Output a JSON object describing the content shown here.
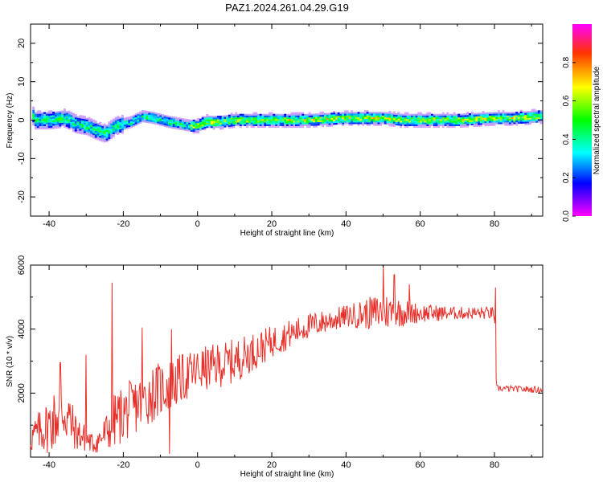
{
  "title": "PAZ1.2024.261.04.29.G19",
  "colors": {
    "snr_line": "#e8302a",
    "spec_bg": "#ffffff"
  },
  "chart_data": [
    {
      "type": "heatmap",
      "xlabel": "Height of straight line (km)",
      "ylabel": "Frequency (Hz)",
      "xlim": [
        -45,
        93
      ],
      "ylim": [
        -25,
        25
      ],
      "xticks": [
        -40,
        -20,
        0,
        20,
        40,
        60,
        80
      ],
      "yticks": [
        -20,
        -10,
        0,
        10,
        20
      ],
      "colorbar": {
        "label": "Normalized spectral amplitude",
        "range": [
          0,
          1
        ],
        "ticks": [
          "0.0",
          "0.2",
          "0.4",
          "0.6",
          "0.8"
        ],
        "colormap": "hsv-reversed (magenta-blue-cyan-green-yellow-red)"
      },
      "ridge_center_hz": [
        [
          -44,
          0
        ],
        [
          -40,
          0
        ],
        [
          -36,
          0.5
        ],
        [
          -33,
          -1
        ],
        [
          -30,
          -1.5
        ],
        [
          -28,
          -2.5
        ],
        [
          -25,
          -3.5
        ],
        [
          -22,
          -1.5
        ],
        [
          -18,
          -0.5
        ],
        [
          -15,
          1
        ],
        [
          -12,
          0.5
        ],
        [
          -8,
          -0.5
        ],
        [
          -5,
          -1
        ],
        [
          -2,
          -1.5
        ],
        [
          0,
          -1.5
        ],
        [
          2,
          -0.5
        ],
        [
          6,
          -0.5
        ],
        [
          10,
          0
        ],
        [
          20,
          0
        ],
        [
          30,
          0
        ],
        [
          40,
          0.5
        ],
        [
          50,
          0.5
        ],
        [
          55,
          0
        ],
        [
          60,
          0
        ],
        [
          70,
          0
        ],
        [
          80,
          0.5
        ],
        [
          85,
          0.5
        ],
        [
          93,
          1
        ]
      ]
    },
    {
      "type": "line",
      "xlabel": "Height of straight line (km)",
      "ylabel": "SNR (10 * v/v)",
      "xlim": [
        -45,
        93
      ],
      "ylim": [
        0,
        6000
      ],
      "xticks": [
        -40,
        -20,
        0,
        20,
        40,
        60,
        80
      ],
      "yticks": [
        2000,
        4000,
        6000
      ],
      "series": [
        {
          "color": "#e8302a",
          "envelope": [
            {
              "x": -45,
              "base": 600,
              "amp": 500
            },
            {
              "x": -40,
              "base": 1000,
              "amp": 900
            },
            {
              "x": -36,
              "base": 1500,
              "amp": 1200
            },
            {
              "x": -33,
              "base": 800,
              "amp": 600
            },
            {
              "x": -28,
              "base": 400,
              "amp": 300
            },
            {
              "x": -25,
              "base": 700,
              "amp": 600
            },
            {
              "x": -22,
              "base": 1200,
              "amp": 900
            },
            {
              "x": -18,
              "base": 1500,
              "amp": 900
            },
            {
              "x": -12,
              "base": 2000,
              "amp": 900
            },
            {
              "x": -5,
              "base": 2400,
              "amp": 800
            },
            {
              "x": 0,
              "base": 2700,
              "amp": 700
            },
            {
              "x": 10,
              "base": 3000,
              "amp": 700
            },
            {
              "x": 20,
              "base": 3600,
              "amp": 500
            },
            {
              "x": 30,
              "base": 4100,
              "amp": 400
            },
            {
              "x": 40,
              "base": 4400,
              "amp": 350
            },
            {
              "x": 50,
              "base": 4550,
              "amp": 600
            },
            {
              "x": 60,
              "base": 4500,
              "amp": 300
            },
            {
              "x": 70,
              "base": 4500,
              "amp": 200
            },
            {
              "x": 80,
              "base": 4500,
              "amp": 200
            },
            {
              "x": 80.5,
              "base": 2150,
              "amp": 100
            },
            {
              "x": 93,
              "base": 2100,
              "amp": 100
            }
          ],
          "spikes": [
            [
              -23,
              5450
            ],
            [
              -15,
              4050
            ],
            [
              -7,
              4000
            ],
            [
              -30,
              3200
            ],
            [
              -37,
              2950
            ],
            [
              50,
              6000
            ],
            [
              53,
              5700
            ],
            [
              57,
              5400
            ],
            [
              80.3,
              5300
            ],
            [
              -7.5,
              100
            ]
          ]
        }
      ]
    }
  ]
}
